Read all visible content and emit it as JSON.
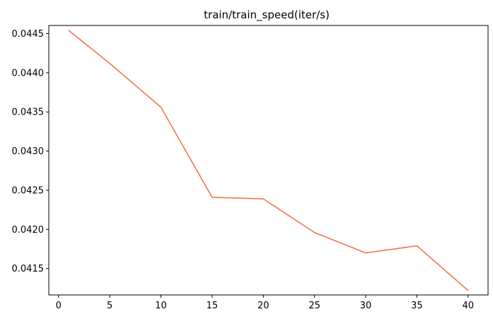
{
  "chart_data": {
    "type": "line",
    "title": "train/train_speed(iter/s)",
    "xlabel": "",
    "ylabel": "",
    "xlim": [
      -0.95,
      41.95
    ],
    "ylim": [
      0.041163,
      0.044604
    ],
    "xticks": [
      0,
      5,
      10,
      15,
      20,
      25,
      30,
      35,
      40
    ],
    "yticks": [
      0.0415,
      0.042,
      0.0425,
      0.043,
      0.0435,
      0.044,
      0.0445
    ],
    "ytick_labels": [
      "0.0415",
      "0.0420",
      "0.0425",
      "0.0430",
      "0.0435",
      "0.0440",
      "0.0445"
    ],
    "grid": false,
    "series": [
      {
        "color": "#f4754a",
        "x": [
          1,
          5,
          10,
          15,
          20,
          25,
          30,
          35,
          40
        ],
        "y": [
          0.04454,
          0.04412,
          0.04356,
          0.04241,
          0.04239,
          0.04196,
          0.0417,
          0.04179,
          0.04122
        ]
      }
    ]
  }
}
